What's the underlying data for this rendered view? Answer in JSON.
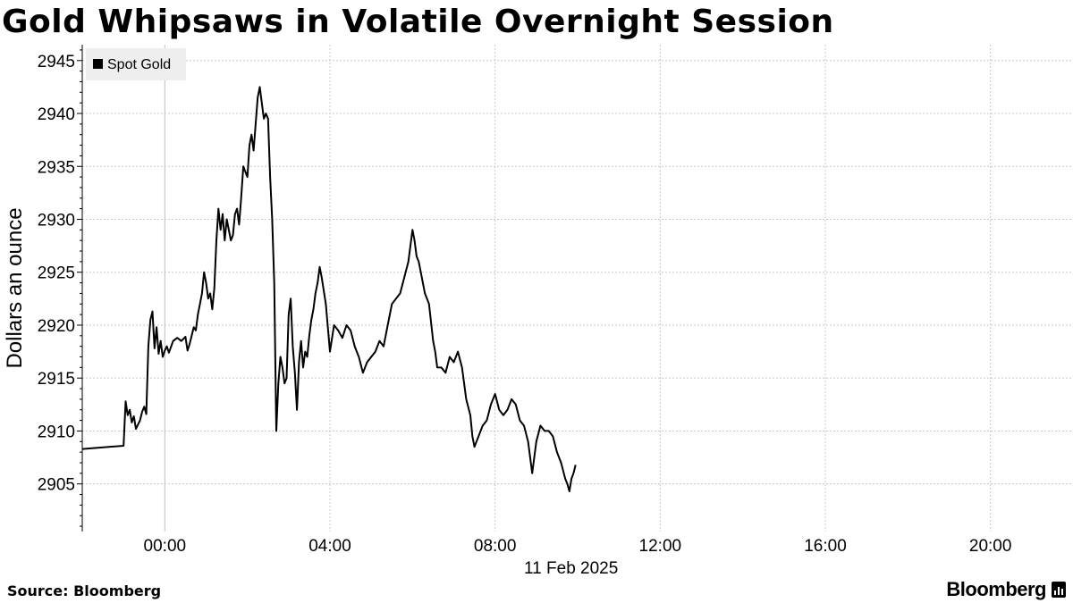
{
  "title": "Gold Whipsaws in Volatile Overnight Session",
  "source_label": "Source:",
  "source_name": "Bloomberg",
  "brand": "Bloomberg",
  "brand_icon": "bloomberg-terminal-icon",
  "colors": {
    "line": "#000000",
    "grid": "#c8c8c8",
    "legend_bg": "#eeeeee"
  },
  "chart_data": {
    "type": "line",
    "title": "Gold Whipsaws in Volatile Overnight Session",
    "ylabel": "Dollars an ounce",
    "xlabel": "11 Feb 2025",
    "date_label": "11 Feb 2025",
    "ylim": [
      2900.5,
      2946.5
    ],
    "xlim_hours": [
      -2.0,
      22.0
    ],
    "grid": true,
    "legend_position": "top-left",
    "x_ticks": [
      {
        "h": 0,
        "label": "00:00"
      },
      {
        "h": 4,
        "label": "04:00"
      },
      {
        "h": 8,
        "label": "08:00"
      },
      {
        "h": 12,
        "label": "12:00"
      },
      {
        "h": 16,
        "label": "16:00"
      },
      {
        "h": 20,
        "label": "20:00"
      }
    ],
    "y_ticks": [
      2905,
      2910,
      2915,
      2920,
      2925,
      2930,
      2935,
      2940,
      2945
    ],
    "series": [
      {
        "name": "Spot Gold",
        "x_hours": [
          -2.0,
          -1.0,
          -0.95,
          -0.9,
          -0.85,
          -0.8,
          -0.75,
          -0.7,
          -0.65,
          -0.6,
          -0.55,
          -0.5,
          -0.45,
          -0.4,
          -0.35,
          -0.3,
          -0.25,
          -0.2,
          -0.15,
          -0.1,
          -0.05,
          0.0,
          0.05,
          0.1,
          0.2,
          0.3,
          0.4,
          0.5,
          0.55,
          0.6,
          0.7,
          0.75,
          0.8,
          0.85,
          0.9,
          0.95,
          1.0,
          1.05,
          1.1,
          1.15,
          1.2,
          1.25,
          1.3,
          1.35,
          1.4,
          1.45,
          1.5,
          1.55,
          1.6,
          1.65,
          1.7,
          1.75,
          1.8,
          1.85,
          1.9,
          1.95,
          2.0,
          2.05,
          2.1,
          2.15,
          2.2,
          2.25,
          2.3,
          2.35,
          2.4,
          2.45,
          2.5,
          2.55,
          2.6,
          2.65,
          2.7,
          2.75,
          2.8,
          2.85,
          2.9,
          2.95,
          3.0,
          3.05,
          3.1,
          3.15,
          3.2,
          3.25,
          3.3,
          3.35,
          3.4,
          3.45,
          3.5,
          3.55,
          3.6,
          3.65,
          3.7,
          3.75,
          3.8,
          3.9,
          4.0,
          4.1,
          4.2,
          4.3,
          4.4,
          4.5,
          4.6,
          4.7,
          4.8,
          4.9,
          5.0,
          5.1,
          5.2,
          5.3,
          5.4,
          5.5,
          5.6,
          5.7,
          5.8,
          5.9,
          6.0,
          6.05,
          6.1,
          6.15,
          6.2,
          6.3,
          6.4,
          6.5,
          6.55,
          6.6,
          6.7,
          6.8,
          6.9,
          7.0,
          7.1,
          7.2,
          7.3,
          7.4,
          7.45,
          7.5,
          7.55,
          7.6,
          7.7,
          7.8,
          7.9,
          8.0,
          8.1,
          8.2,
          8.3,
          8.4,
          8.5,
          8.6,
          8.7,
          8.8,
          8.9,
          9.0,
          9.1,
          9.2,
          9.3,
          9.4,
          9.5,
          9.6,
          9.7,
          9.75,
          9.8,
          9.85,
          9.9,
          9.95
        ],
        "y": [
          2908.3,
          2908.6,
          2912.8,
          2911.5,
          2912.0,
          2910.8,
          2911.4,
          2910.2,
          2910.6,
          2911.0,
          2911.8,
          2912.3,
          2911.6,
          2918.0,
          2920.5,
          2921.3,
          2917.8,
          2919.8,
          2917.3,
          2918.5,
          2917.0,
          2917.6,
          2918.0,
          2917.4,
          2918.5,
          2918.8,
          2918.5,
          2918.9,
          2917.6,
          2918.2,
          2919.8,
          2919.5,
          2921.0,
          2922.0,
          2923.0,
          2925.0,
          2924.0,
          2922.5,
          2923.0,
          2921.5,
          2923.5,
          2928.0,
          2931.0,
          2929.0,
          2930.5,
          2928.0,
          2930.0,
          2929.0,
          2928.0,
          2928.5,
          2930.5,
          2931.0,
          2929.5,
          2932.0,
          2935.0,
          2934.5,
          2934.0,
          2937.0,
          2938.0,
          2936.5,
          2939.0,
          2941.5,
          2942.5,
          2941.0,
          2939.5,
          2940.0,
          2939.5,
          2934.0,
          2930.0,
          2924.0,
          2910.0,
          2914.5,
          2917.0,
          2916.0,
          2914.5,
          2915.0,
          2921.0,
          2922.5,
          2918.0,
          2915.5,
          2912.0,
          2916.5,
          2918.5,
          2916.0,
          2917.5,
          2917.0,
          2919.0,
          2920.5,
          2921.5,
          2923.0,
          2924.0,
          2925.5,
          2924.5,
          2922.0,
          2917.5,
          2920.0,
          2919.5,
          2918.8,
          2920.0,
          2919.5,
          2918.0,
          2917.0,
          2915.5,
          2916.5,
          2917.0,
          2917.5,
          2918.5,
          2918.0,
          2920.0,
          2922.0,
          2922.5,
          2923.0,
          2924.5,
          2926.0,
          2929.0,
          2928.0,
          2926.5,
          2926.0,
          2925.0,
          2923.0,
          2922.0,
          2918.5,
          2917.5,
          2916.0,
          2916.0,
          2915.5,
          2917.0,
          2916.5,
          2917.5,
          2916.0,
          2913.0,
          2911.5,
          2909.5,
          2908.5,
          2909.0,
          2909.5,
          2910.5,
          2911.0,
          2912.5,
          2913.5,
          2912.0,
          2911.5,
          2912.0,
          2913.0,
          2912.5,
          2911.0,
          2910.5,
          2909.0,
          2906.0,
          2909.0,
          2910.5,
          2910.0,
          2910.0,
          2909.5,
          2908.0,
          2907.0,
          2905.5,
          2905.0,
          2904.3,
          2905.5,
          2906.0,
          2906.8
        ]
      }
    ]
  }
}
